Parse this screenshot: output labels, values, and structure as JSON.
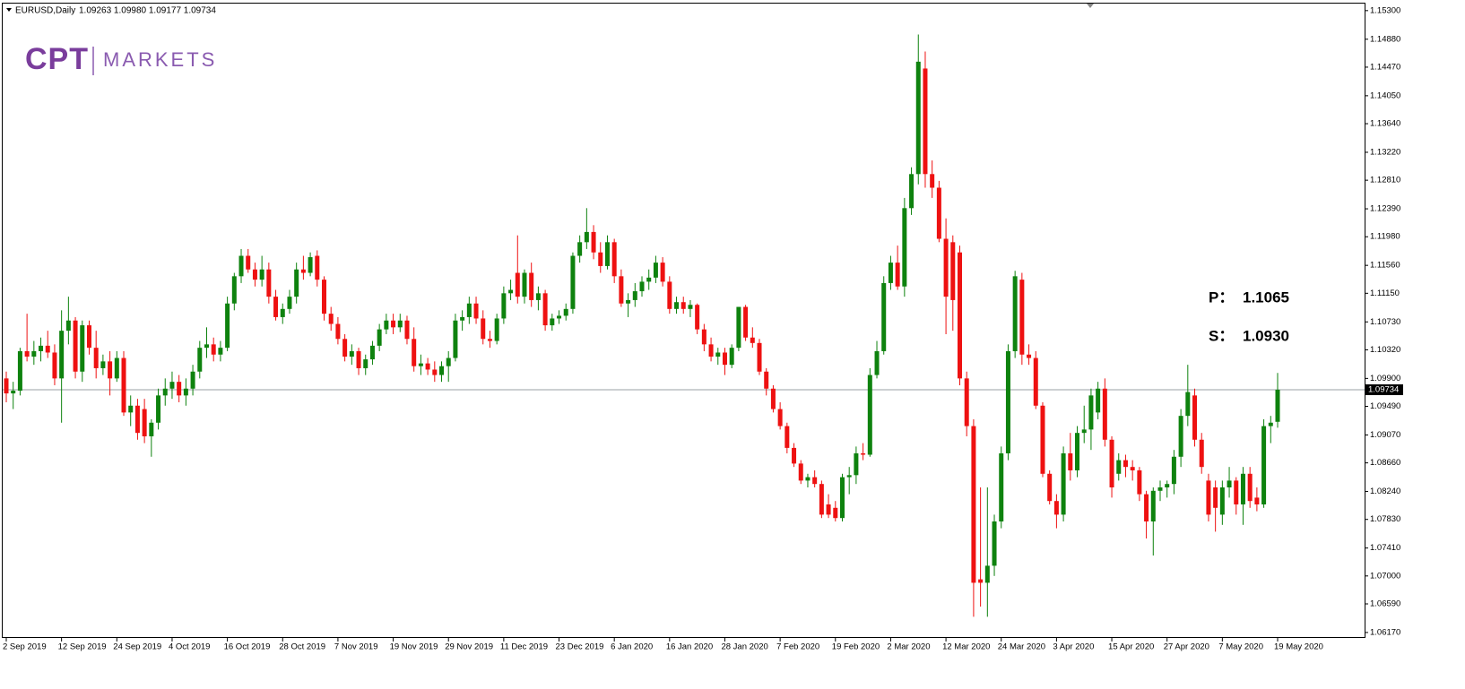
{
  "chart_data": {
    "type": "candlestick",
    "header": "EURUSD,Daily",
    "header_values": "1.09263 1.09980 1.09177 1.09734",
    "logo": {
      "mark": "CPT",
      "text": "MARKETS"
    },
    "annotations": [
      {
        "label": "P：",
        "value": 1.1065
      },
      {
        "label": "S：",
        "value": {
          "value": 1.093,
          "label": "1.0930"
        }
      }
    ],
    "up_color": "#0e820e",
    "down_color": "#ee1111",
    "last_price": {
      "value": 1.09734,
      "label": "1.09734"
    },
    "ylim": [
      1.0609,
      1.1539
    ],
    "yticks": [
      {
        "value": 1.153,
        "label": "1.15300"
      },
      {
        "value": 1.1488,
        "label": "1.14880"
      },
      {
        "value": 1.1447,
        "label": "1.14470"
      },
      {
        "value": 1.1405,
        "label": "1.14050"
      },
      {
        "value": 1.1364,
        "label": "1.13640"
      },
      {
        "value": 1.1322,
        "label": "1.13220"
      },
      {
        "value": 1.1281,
        "label": "1.12810"
      },
      {
        "value": 1.1239,
        "label": "1.12390"
      },
      {
        "value": 1.1198,
        "label": "1.11980"
      },
      {
        "value": 1.1156,
        "label": "1.11560"
      },
      {
        "value": 1.1115,
        "label": "1.11150"
      },
      {
        "value": 1.1073,
        "label": "1.10730"
      },
      {
        "value": 1.1032,
        "label": "1.10320"
      },
      {
        "value": 1.099,
        "label": "1.09900"
      },
      {
        "value": 1.0949,
        "label": "1.09490"
      },
      {
        "value": 1.0907,
        "label": "1.09070"
      },
      {
        "value": 1.0866,
        "label": "1.08660"
      },
      {
        "value": 1.0824,
        "label": "1.08240"
      },
      {
        "value": 1.0783,
        "label": "1.07830"
      },
      {
        "value": 1.0741,
        "label": "1.07410"
      },
      {
        "value": 1.07,
        "label": "1.07000"
      },
      {
        "value": 1.0659,
        "label": "1.06590"
      },
      {
        "value": 1.0617,
        "label": "1.06170"
      }
    ],
    "categories": [
      "2 Sep 2019",
      null,
      null,
      null,
      null,
      null,
      null,
      null,
      "12 Sep 2019",
      null,
      null,
      null,
      null,
      null,
      null,
      null,
      "24 Sep 2019",
      null,
      null,
      null,
      null,
      null,
      null,
      null,
      "4 Oct 2019",
      null,
      null,
      null,
      null,
      null,
      null,
      null,
      "16 Oct 2019",
      null,
      null,
      null,
      null,
      null,
      null,
      null,
      "28 Oct 2019",
      null,
      null,
      null,
      null,
      null,
      null,
      null,
      "7 Nov 2019",
      null,
      null,
      null,
      null,
      null,
      null,
      null,
      "19 Nov 2019",
      null,
      null,
      null,
      null,
      null,
      null,
      null,
      "29 Nov 2019",
      null,
      null,
      null,
      null,
      null,
      null,
      null,
      "11 Dec 2019",
      null,
      null,
      null,
      null,
      null,
      null,
      null,
      "23 Dec 2019",
      null,
      null,
      null,
      null,
      null,
      null,
      null,
      "6 Jan 2020",
      null,
      null,
      null,
      null,
      null,
      null,
      null,
      "16 Jan 2020",
      null,
      null,
      null,
      null,
      null,
      null,
      null,
      "28 Jan 2020",
      null,
      null,
      null,
      null,
      null,
      null,
      null,
      "7 Feb 2020",
      null,
      null,
      null,
      null,
      null,
      null,
      null,
      "19 Feb 2020",
      null,
      null,
      null,
      null,
      null,
      null,
      null,
      "2 Mar 2020",
      null,
      null,
      null,
      null,
      null,
      null,
      null,
      "12 Mar 2020",
      null,
      null,
      null,
      null,
      null,
      null,
      null,
      "24 Mar 2020",
      null,
      null,
      null,
      null,
      null,
      null,
      null,
      "3 Apr 2020",
      null,
      null,
      null,
      null,
      null,
      null,
      null,
      "15 Apr 2020",
      null,
      null,
      null,
      null,
      null,
      null,
      null,
      "27 Apr 2020",
      null,
      null,
      null,
      null,
      null,
      null,
      null,
      "7 May 2020",
      null,
      null,
      null,
      null,
      null,
      null,
      null,
      "19 May 2020"
    ],
    "open": [
      1.099,
      1.0968,
      1.0972,
      1.103,
      1.1022,
      1.103,
      1.1038,
      1.1028,
      1.099,
      1.106,
      1.1075,
      1.1,
      1.1068,
      1.1035,
      1.1005,
      1.1015,
      1.099,
      1.102,
      1.094,
      1.095,
      1.0945,
      1.0905,
      1.0925,
      1.0965,
      1.0975,
      1.0985,
      1.0965,
      1.0975,
      1.1,
      1.1035,
      1.104,
      1.1025,
      1.1035,
      1.11,
      1.114,
      1.117,
      1.115,
      1.1135,
      1.115,
      1.111,
      1.108,
      1.1092,
      1.111,
      1.115,
      1.1145,
      1.117,
      1.1135,
      1.1085,
      1.107,
      1.1048,
      1.1022,
      1.103,
      1.1005,
      1.1018,
      1.1038,
      1.1062,
      1.1075,
      1.1065,
      1.1075,
      1.1048,
      1.1008,
      1.1012,
      1.1003,
      1.0995,
      1.1008,
      1.102,
      1.1075,
      1.108,
      1.11,
      1.1078,
      1.1048,
      1.1045,
      1.1078,
      1.1115,
      1.1145,
      1.111,
      1.1145,
      1.1105,
      1.1115,
      1.1068,
      1.1078,
      1.1082,
      1.1092,
      1.117,
      1.119,
      1.1205,
      1.1175,
      1.1155,
      1.119,
      1.114,
      1.11,
      1.1105,
      1.1118,
      1.1132,
      1.1138,
      1.116,
      1.1132,
      1.1092,
      1.1102,
      1.1092,
      1.1098,
      1.1062,
      1.104,
      1.1022,
      1.1028,
      1.101,
      1.1035,
      1.1095,
      1.105,
      1.1042,
      1.1,
      1.0975,
      1.0945,
      1.092,
      1.0888,
      1.0865,
      1.084,
      1.0845,
      1.0835,
      1.0805,
      1.08,
      1.0785,
      1.0845,
      1.0848,
      1.088,
      1.0878,
      1.0995,
      1.103,
      1.113,
      1.116,
      1.1125,
      1.124,
      1.129,
      1.1445,
      1.129,
      1.127,
      1.1195,
      1.119,
      1.1175,
      1.099,
      1.092,
      1.0695,
      1.069,
      1.0715,
      1.078,
      1.088,
      1.103,
      1.1135,
      1.1025,
      1.102,
      1.095,
      1.085,
      1.081,
      1.079,
      1.088,
      1.0855,
      1.091,
      1.0915,
      1.094,
      1.0975,
      1.09,
      1.085,
      1.087,
      1.086,
      1.0855,
      1.082,
      1.078,
      1.0825,
      1.083,
      1.0835,
      1.0875,
      1.0935,
      1.0965,
      1.09,
      1.084,
      1.083,
      1.079,
      1.083,
      1.084,
      1.0805,
      1.085,
      1.0815,
      1.0805,
      1.092,
      1.09263
    ],
    "high": [
      1.1,
      1.0985,
      1.1035,
      1.1085,
      1.1045,
      1.105,
      1.106,
      1.104,
      1.109,
      1.111,
      1.108,
      1.1075,
      1.1075,
      1.106,
      1.1025,
      1.103,
      1.103,
      1.103,
      1.0965,
      1.096,
      1.096,
      1.093,
      1.0975,
      1.099,
      1.1,
      1.0995,
      1.099,
      1.101,
      1.1045,
      1.1065,
      1.105,
      1.1045,
      1.111,
      1.1145,
      1.118,
      1.118,
      1.116,
      1.117,
      1.116,
      1.112,
      1.11,
      1.112,
      1.116,
      1.117,
      1.1175,
      1.1178,
      1.114,
      1.1095,
      1.108,
      1.1055,
      1.104,
      1.1035,
      1.1025,
      1.1045,
      1.107,
      1.1085,
      1.1085,
      1.1085,
      1.1082,
      1.1065,
      1.1025,
      1.102,
      1.1015,
      1.1015,
      1.103,
      1.1085,
      1.109,
      1.111,
      1.111,
      1.109,
      1.106,
      1.1085,
      1.1125,
      1.1135,
      1.12,
      1.115,
      1.116,
      1.1125,
      1.112,
      1.1085,
      1.109,
      1.11,
      1.1175,
      1.12,
      1.124,
      1.1215,
      1.119,
      1.12,
      1.1195,
      1.115,
      1.1115,
      1.113,
      1.114,
      1.115,
      1.117,
      1.1168,
      1.114,
      1.111,
      1.111,
      1.1105,
      1.11,
      1.107,
      1.105,
      1.1035,
      1.1035,
      1.104,
      1.1095,
      1.1098,
      1.1065,
      1.1048,
      1.1005,
      1.098,
      1.0955,
      1.0925,
      1.0895,
      1.087,
      1.085,
      1.0855,
      1.084,
      1.082,
      1.081,
      1.085,
      1.086,
      1.089,
      1.0895,
      1.1005,
      1.1045,
      1.114,
      1.117,
      1.1185,
      1.1255,
      1.13,
      1.1495,
      1.147,
      1.131,
      1.128,
      1.1225,
      1.12,
      1.1185,
      1.1,
      1.093,
      1.083,
      1.083,
      1.079,
      1.089,
      1.104,
      1.1148,
      1.1145,
      1.104,
      1.103,
      1.0955,
      1.0855,
      1.082,
      1.089,
      1.091,
      1.092,
      1.095,
      1.0975,
      1.0985,
      1.099,
      1.0905,
      1.088,
      1.0878,
      1.087,
      1.086,
      1.0825,
      1.083,
      1.084,
      1.084,
      1.0885,
      1.0945,
      1.101,
      1.0975,
      1.091,
      1.085,
      1.084,
      1.084,
      1.086,
      1.0845,
      1.086,
      1.086,
      1.083,
      1.093,
      1.0935,
      1.0998
    ],
    "low": [
      1.0955,
      1.0945,
      1.0965,
      1.1015,
      1.101,
      1.1015,
      1.102,
      1.098,
      1.0925,
      1.104,
      1.099,
      1.0985,
      1.1025,
      1.099,
      1.0995,
      1.0965,
      1.0985,
      1.0935,
      1.092,
      1.09,
      1.0895,
      1.0875,
      1.0915,
      1.095,
      1.096,
      1.0955,
      1.095,
      1.0965,
      1.099,
      1.102,
      1.1015,
      1.1015,
      1.103,
      1.109,
      1.113,
      1.1145,
      1.1125,
      1.1125,
      1.11,
      1.1075,
      1.107,
      1.1085,
      1.11,
      1.1135,
      1.114,
      1.1125,
      1.1075,
      1.106,
      1.104,
      1.1015,
      1.101,
      1.0995,
      1.0995,
      1.101,
      1.103,
      1.1055,
      1.1055,
      1.1058,
      1.104,
      1.1,
      1.0995,
      1.0995,
      1.0985,
      1.0985,
      1.0985,
      1.1015,
      1.106,
      1.107,
      1.107,
      1.104,
      1.1035,
      1.104,
      1.107,
      1.1105,
      1.11,
      1.11,
      1.1095,
      1.109,
      1.106,
      1.106,
      1.107,
      1.1075,
      1.1085,
      1.116,
      1.118,
      1.1165,
      1.1145,
      1.115,
      1.113,
      1.1095,
      1.108,
      1.1095,
      1.111,
      1.112,
      1.113,
      1.1125,
      1.1085,
      1.1085,
      1.1085,
      1.108,
      1.1055,
      1.103,
      1.1015,
      1.101,
      1.0995,
      1.1005,
      1.103,
      1.1045,
      1.1035,
      1.0995,
      1.0965,
      1.094,
      1.0915,
      1.088,
      1.086,
      1.0835,
      1.083,
      1.083,
      1.0785,
      1.0785,
      1.078,
      1.078,
      1.082,
      1.0835,
      1.087,
      1.0875,
      1.099,
      1.1025,
      1.112,
      1.112,
      1.111,
      1.123,
      1.1275,
      1.127,
      1.1255,
      1.119,
      1.1055,
      1.106,
      1.098,
      1.0905,
      1.064,
      1.0655,
      1.064,
      1.07,
      1.077,
      1.087,
      1.102,
      1.101,
      1.101,
      1.0945,
      1.0845,
      1.0805,
      1.077,
      1.078,
      1.084,
      1.0845,
      1.0895,
      1.0885,
      1.093,
      1.089,
      1.0815,
      1.084,
      1.0845,
      1.084,
      1.081,
      1.0755,
      1.073,
      1.081,
      1.0815,
      1.082,
      1.086,
      1.092,
      1.089,
      1.085,
      1.078,
      1.0765,
      1.0775,
      1.0815,
      1.079,
      1.0775,
      1.08,
      1.0795,
      1.08,
      1.0895,
      1.09177
    ],
    "close": [
      1.0968,
      1.0972,
      1.103,
      1.1022,
      1.103,
      1.1038,
      1.1028,
      1.099,
      1.106,
      1.1075,
      1.1,
      1.1068,
      1.1035,
      1.1005,
      1.1015,
      1.099,
      1.102,
      1.094,
      1.095,
      1.091,
      1.0905,
      1.0925,
      1.0965,
      1.0975,
      1.0985,
      1.0965,
      1.0975,
      1.1,
      1.1035,
      1.104,
      1.1025,
      1.1035,
      1.11,
      1.114,
      1.117,
      1.115,
      1.1135,
      1.115,
      1.111,
      1.108,
      1.1092,
      1.111,
      1.115,
      1.1145,
      1.1168,
      1.1135,
      1.1085,
      1.107,
      1.1048,
      1.1022,
      1.103,
      1.1005,
      1.1018,
      1.1038,
      1.1062,
      1.1075,
      1.1065,
      1.1075,
      1.1048,
      1.1008,
      1.1012,
      1.1003,
      1.0995,
      1.1008,
      1.102,
      1.1075,
      1.108,
      1.11,
      1.1078,
      1.1048,
      1.1045,
      1.1078,
      1.1115,
      1.112,
      1.111,
      1.1145,
      1.1105,
      1.1115,
      1.1068,
      1.1078,
      1.1082,
      1.1092,
      1.117,
      1.119,
      1.1205,
      1.1175,
      1.1155,
      1.119,
      1.114,
      1.11,
      1.1105,
      1.1118,
      1.1132,
      1.1138,
      1.116,
      1.1132,
      1.1092,
      1.1102,
      1.1092,
      1.1098,
      1.1062,
      1.104,
      1.1022,
      1.1028,
      1.101,
      1.1035,
      1.1095,
      1.105,
      1.1042,
      1.1,
      1.0975,
      1.0945,
      1.092,
      1.0888,
      1.0865,
      1.084,
      1.0845,
      1.0835,
      1.079,
      1.079,
      1.0785,
      1.0845,
      1.0848,
      1.088,
      1.0878,
      1.0995,
      1.103,
      1.113,
      1.116,
      1.1125,
      1.124,
      1.129,
      1.1455,
      1.129,
      1.127,
      1.1195,
      1.111,
      1.1105,
      1.099,
      1.092,
      1.069,
      1.069,
      1.0715,
      1.078,
      1.088,
      1.103,
      1.114,
      1.1025,
      1.102,
      1.095,
      1.085,
      1.081,
      1.079,
      1.088,
      1.0855,
      1.091,
      1.0915,
      1.0965,
      1.0975,
      1.09,
      1.083,
      1.087,
      1.086,
      1.0855,
      1.082,
      1.078,
      1.0825,
      1.083,
      1.0835,
      1.0875,
      1.0935,
      1.097,
      1.09,
      1.086,
      1.079,
      1.08,
      1.083,
      1.084,
      1.0805,
      1.085,
      1.081,
      1.0805,
      1.092,
      1.0925,
      1.09734
    ]
  }
}
